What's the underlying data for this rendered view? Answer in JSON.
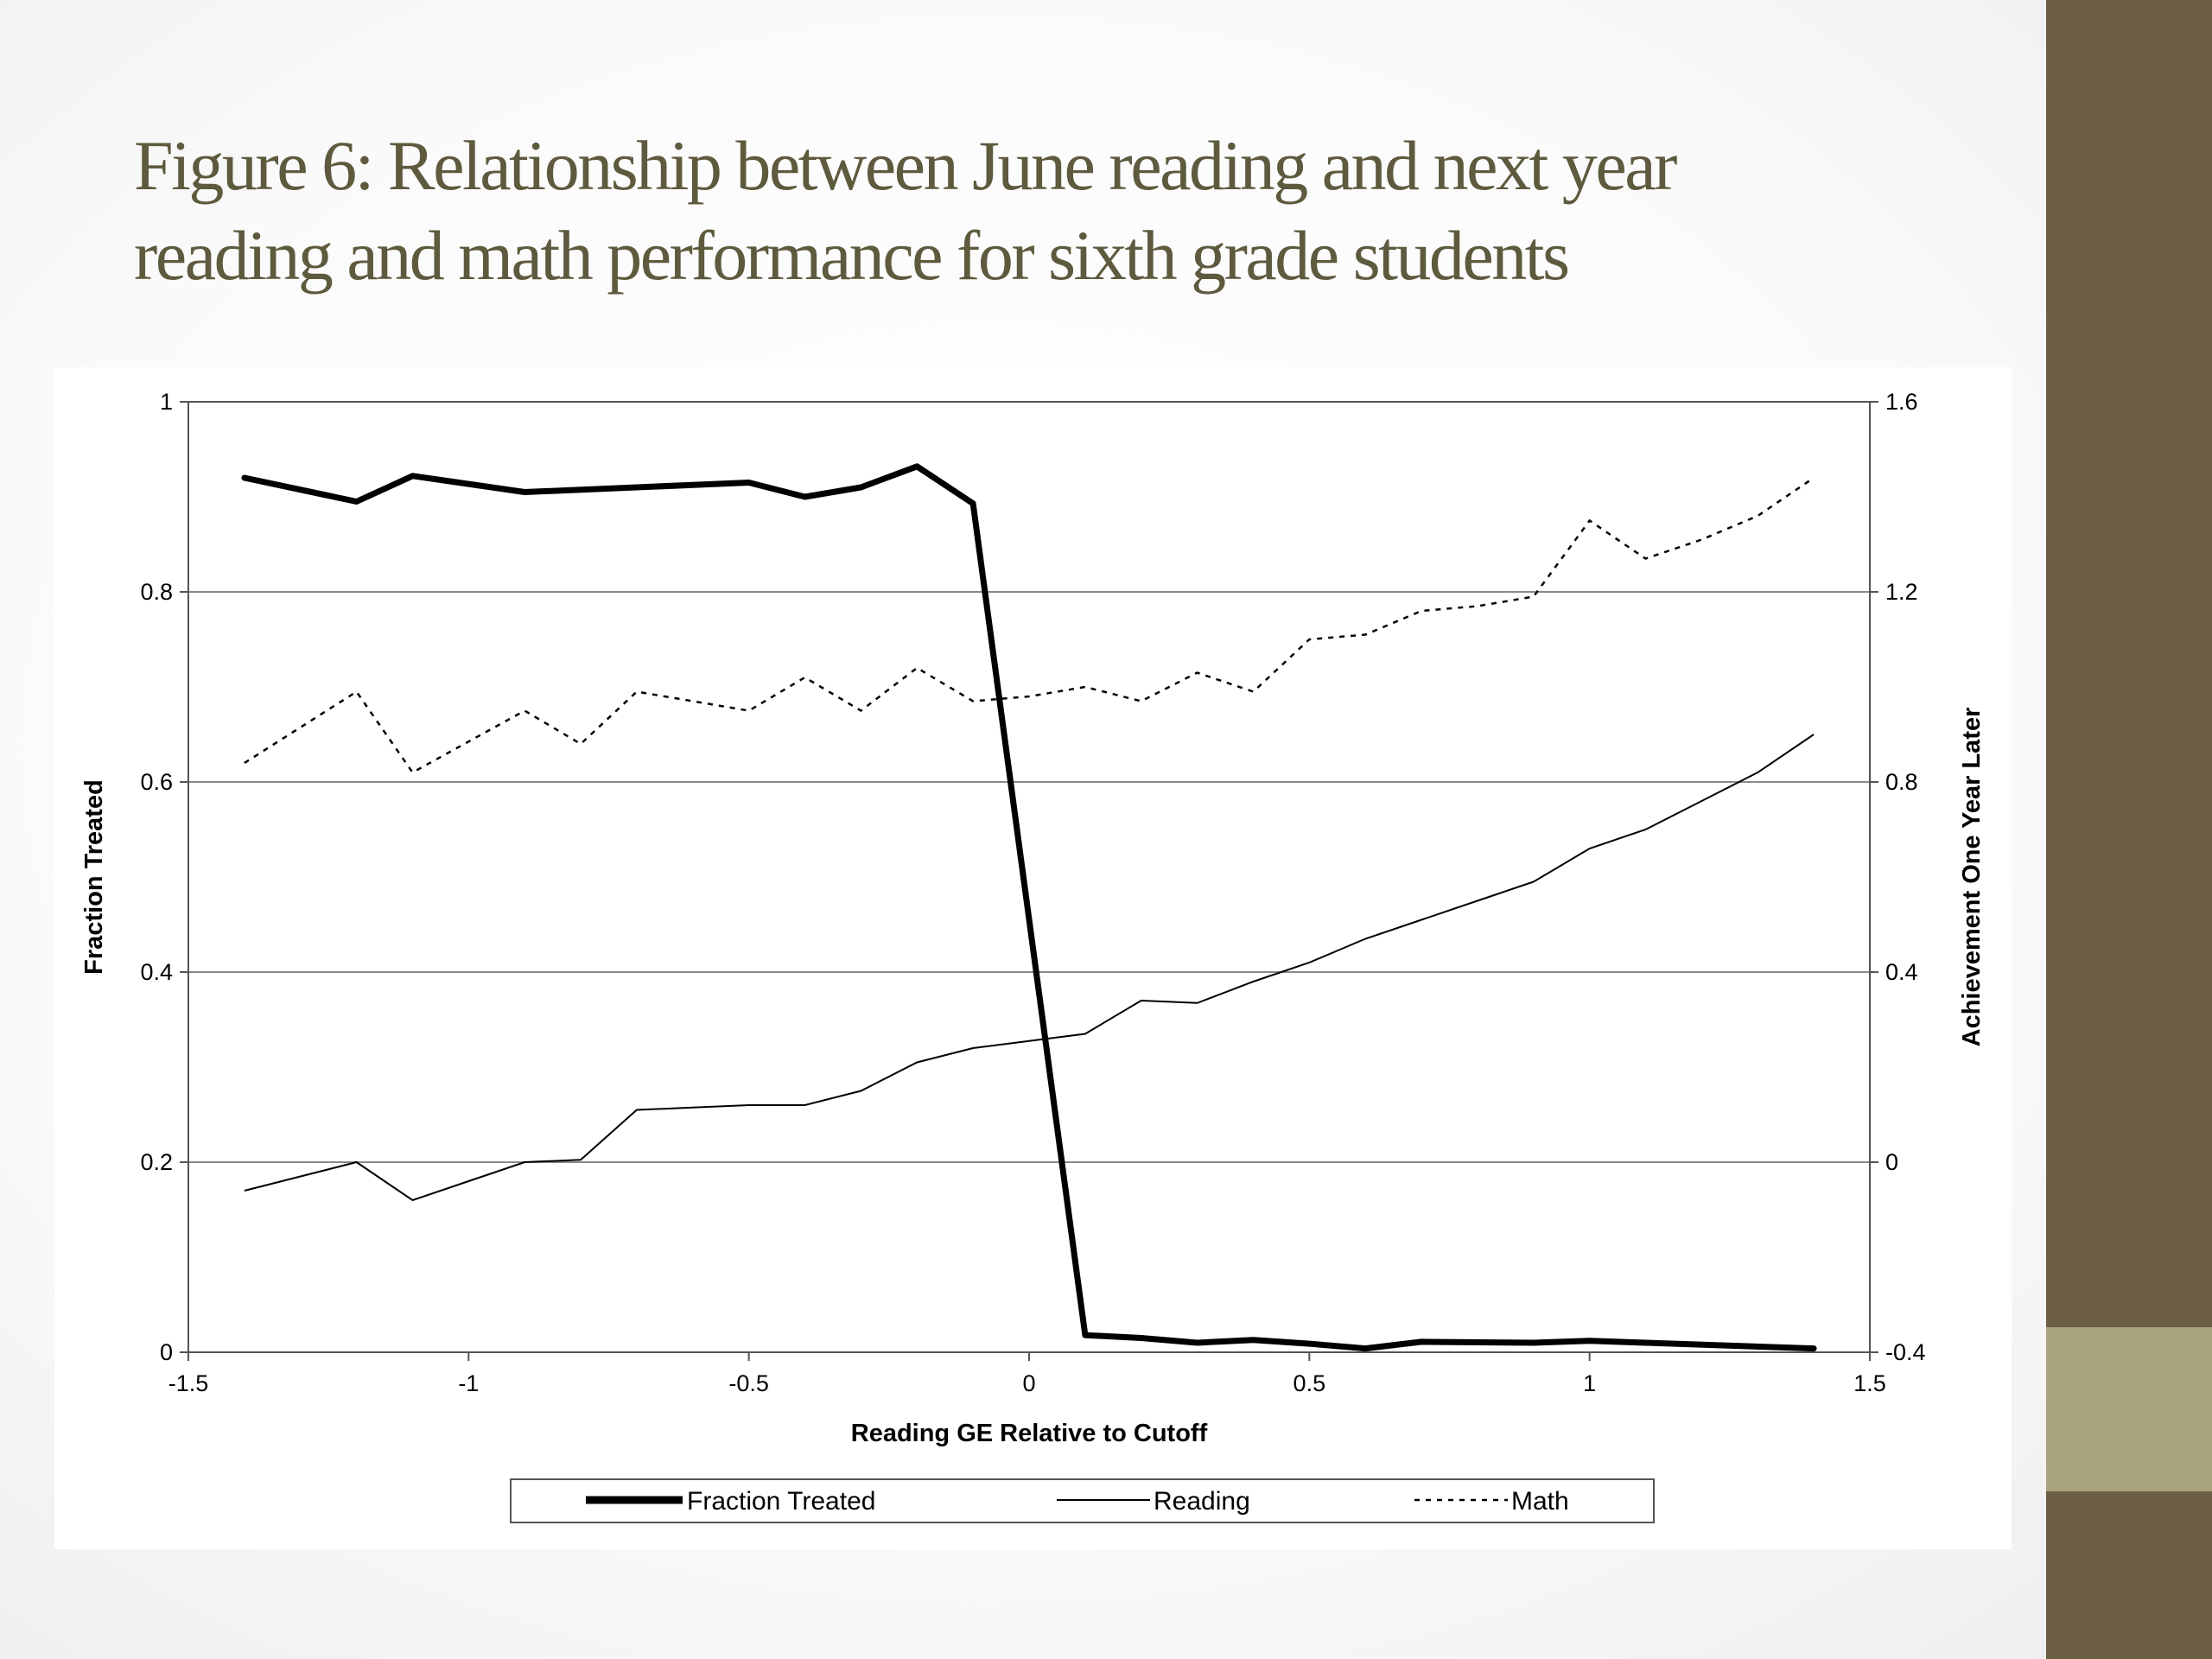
{
  "slide": {
    "title_line1": "Figure 6: Relationship between June reading and next year",
    "title_line2": "reading and math performance for sixth grade students",
    "title_color": "#5e5a3e",
    "sidebar_color": "#6b5e45",
    "sidebar_accent_color": "#a9a47e"
  },
  "chart_data": {
    "type": "line",
    "xlabel": "Reading GE Relative to Cutoff",
    "ylabel_left": "Fraction Treated",
    "ylabel_right": "Achievement One Year Later",
    "xlim": [
      -1.5,
      1.5
    ],
    "ylim_left": [
      0,
      1
    ],
    "ylim_right": [
      -0.4,
      1.6
    ],
    "x_ticks": [
      "-1.5",
      "-1",
      "-0.5",
      "0",
      "0.5",
      "1",
      "1.5"
    ],
    "y_ticks_left": [
      "0",
      "0.2",
      "0.4",
      "0.6",
      "0.8",
      "1"
    ],
    "y_ticks_right": [
      "-0.4",
      "0",
      "0.4",
      "0.8",
      "1.2",
      "1.6"
    ],
    "grid": "horizontal",
    "legend_position": "bottom",
    "series": [
      {
        "name": "Fraction Treated",
        "axis": "left",
        "style": "thick-solid",
        "x": [
          -1.4,
          -1.2,
          -1.1,
          -0.9,
          -0.5,
          -0.4,
          -0.3,
          -0.2,
          -0.1,
          0.1,
          0.2,
          0.3,
          0.4,
          0.5,
          0.6,
          0.7,
          0.9,
          1.0,
          1.1,
          1.4
        ],
        "y": [
          0.92,
          0.895,
          0.922,
          0.905,
          0.915,
          0.9,
          0.91,
          0.932,
          0.893,
          0.018,
          0.015,
          0.01,
          0.013,
          0.009,
          0.004,
          0.011,
          0.01,
          0.012,
          0.01,
          0.004
        ]
      },
      {
        "name": "Reading",
        "axis": "right",
        "style": "thin-solid",
        "x": [
          -1.4,
          -1.2,
          -1.1,
          -1.0,
          -0.9,
          -0.8,
          -0.7,
          -0.6,
          -0.5,
          -0.4,
          -0.3,
          -0.2,
          -0.1,
          0.0,
          0.1,
          0.2,
          0.3,
          0.4,
          0.5,
          0.6,
          0.7,
          0.8,
          0.9,
          1.0,
          1.1,
          1.2,
          1.3,
          1.4
        ],
        "y": [
          -0.06,
          0.0,
          -0.08,
          -0.04,
          0.0,
          0.005,
          0.11,
          0.115,
          0.12,
          0.12,
          0.15,
          0.21,
          0.24,
          0.255,
          0.27,
          0.34,
          0.335,
          0.38,
          0.42,
          0.47,
          0.51,
          0.55,
          0.59,
          0.66,
          0.7,
          0.76,
          0.82,
          0.9
        ]
      },
      {
        "name": "Math",
        "axis": "right",
        "style": "dotted",
        "x": [
          -1.4,
          -1.2,
          -1.1,
          -0.9,
          -0.8,
          -0.7,
          -0.5,
          -0.4,
          -0.3,
          -0.2,
          -0.1,
          0.0,
          0.1,
          0.2,
          0.3,
          0.4,
          0.5,
          0.6,
          0.7,
          0.8,
          0.9,
          1.0,
          1.1,
          1.2,
          1.3,
          1.4
        ],
        "y": [
          0.84,
          0.99,
          0.82,
          0.95,
          0.88,
          0.99,
          0.95,
          1.02,
          0.95,
          1.04,
          0.97,
          0.98,
          1.0,
          0.97,
          1.03,
          0.99,
          1.1,
          1.11,
          1.16,
          1.17,
          1.19,
          1.35,
          1.27,
          1.31,
          1.36,
          1.44
        ]
      }
    ]
  }
}
